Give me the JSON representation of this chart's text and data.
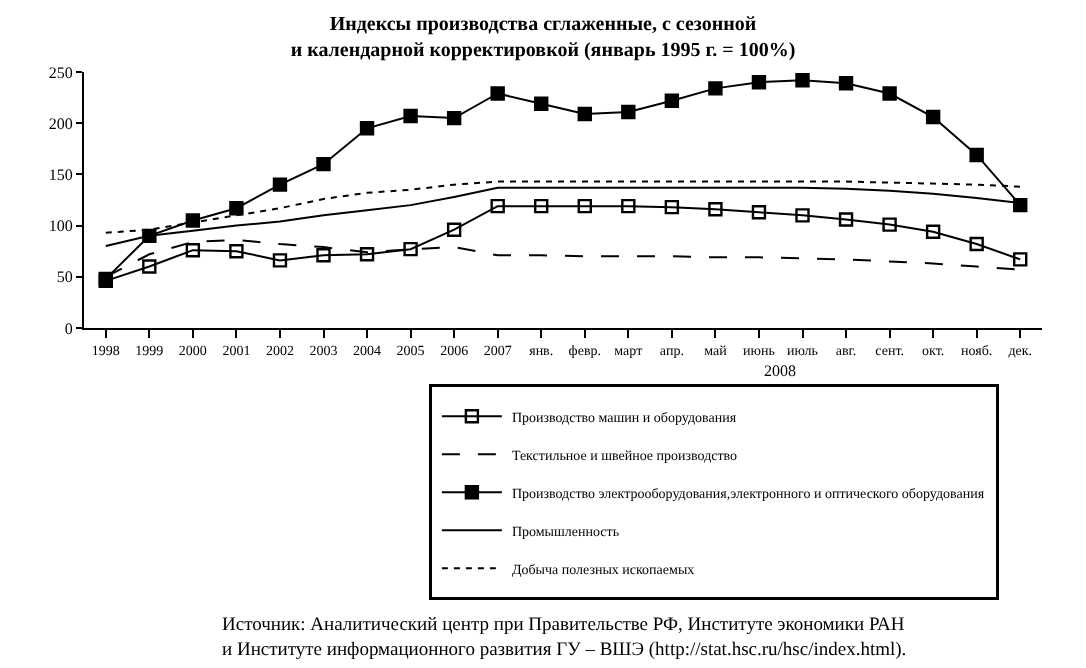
{
  "chart_data": {
    "type": "line",
    "title": "Индексы производства сглаженные, с сезонной\nи календарной корректировкой (январь 1995 г. = 100%)",
    "categories": [
      "1998",
      "1999",
      "2000",
      "2001",
      "2002",
      "2003",
      "2004",
      "2005",
      "2006",
      "2007",
      "янв.",
      "февр.",
      "март",
      "апр.",
      "май",
      "июнь",
      "июль",
      "авг.",
      "сент.",
      "окт.",
      "нояб.",
      "дек."
    ],
    "series": [
      {
        "name": "Производство машин и оборудования",
        "color": "#000000",
        "marker": "square-open",
        "line_style": "solid",
        "values": [
          46,
          60,
          76,
          75,
          66,
          71,
          72,
          77,
          96,
          119,
          119,
          119,
          119,
          118,
          116,
          113,
          110,
          106,
          101,
          94,
          82,
          67
        ]
      },
      {
        "name": "Текстильное и швейное производство",
        "color": "#000000",
        "marker": "none",
        "line_style": "dashed",
        "values": [
          50,
          72,
          84,
          86,
          82,
          79,
          74,
          77,
          79,
          71,
          71,
          70,
          70,
          70,
          69,
          69,
          68,
          67,
          65,
          63,
          60,
          57
        ]
      },
      {
        "name": "Производство электрооборудования,электронного и оптического оборудования",
        "color": "#000000",
        "marker": "square",
        "line_style": "solid",
        "values": [
          48,
          90,
          105,
          117,
          140,
          160,
          195,
          207,
          205,
          229,
          219,
          209,
          211,
          222,
          234,
          240,
          242,
          239,
          229,
          206,
          169,
          120
        ]
      },
      {
        "name": "Промышленность",
        "color": "#000000",
        "marker": "none",
        "line_style": "solid",
        "values": [
          80,
          90,
          95,
          100,
          104,
          110,
          115,
          120,
          128,
          137,
          137,
          137,
          137,
          137,
          137,
          137,
          137,
          136,
          134,
          131,
          127,
          122
        ]
      },
      {
        "name": "Добыча полезных ископаемых",
        "color": "#000000",
        "marker": "none",
        "line_style": "dotted",
        "values": [
          93,
          96,
          103,
          110,
          117,
          126,
          132,
          135,
          140,
          143,
          143,
          143,
          143,
          143,
          143,
          143,
          143,
          143,
          142,
          141,
          140,
          138
        ]
      }
    ],
    "ylim": [
      0,
      250
    ],
    "yticks": [
      0,
      50,
      100,
      150,
      200,
      250
    ],
    "grid": false,
    "legend": "bottom",
    "annotations": [
      "2008",
      "Источник: Аналитический центр при Правительстве РФ, Институте экономики РАН\nи Институте информационного развития ГУ – ВШЭ (http://stat.hsc.ru/hsc/index.html)."
    ]
  }
}
